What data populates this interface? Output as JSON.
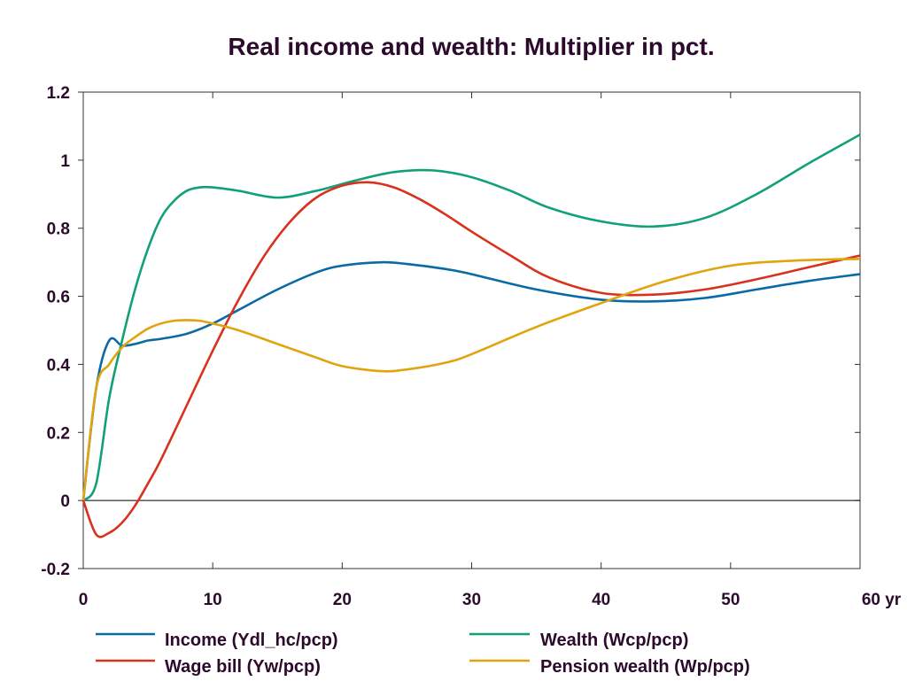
{
  "chart_data": {
    "type": "line",
    "title": "Real income and wealth: Multiplier in pct.",
    "xlim": [
      0,
      60
    ],
    "ylim": [
      -0.2,
      1.2
    ],
    "x_ticks": [
      0,
      10,
      20,
      30,
      40,
      50,
      60
    ],
    "x_tick_labels": [
      "0",
      "10",
      "20",
      "30",
      "40",
      "50",
      "60 yr"
    ],
    "y_ticks": [
      -0.2,
      0,
      0.2,
      0.4,
      0.6,
      0.8,
      1,
      1.2
    ],
    "y_tick_labels": [
      "-0.2",
      "0",
      "0.2",
      "0.4",
      "0.6",
      "0.8",
      "1",
      "1.2"
    ],
    "zero_line": true,
    "grid": false,
    "legend_position": "bottom",
    "series": [
      {
        "name": "Income (Ydl_hc/pcp)",
        "color": "#0a6aa6",
        "x": [
          0,
          1,
          2,
          3,
          4,
          5,
          6,
          8,
          10,
          12,
          15,
          18,
          20,
          23,
          25,
          28,
          30,
          35,
          40,
          44,
          48,
          52,
          56,
          60
        ],
        "y": [
          0,
          0.33,
          0.47,
          0.455,
          0.46,
          0.47,
          0.475,
          0.49,
          0.52,
          0.56,
          0.62,
          0.67,
          0.69,
          0.7,
          0.695,
          0.68,
          0.665,
          0.62,
          0.59,
          0.585,
          0.595,
          0.62,
          0.645,
          0.665
        ]
      },
      {
        "name": "Wealth (Wcp/pcp)",
        "color": "#12a07a",
        "x": [
          0,
          1,
          2,
          3,
          4,
          5,
          6,
          7,
          8,
          9,
          10,
          12,
          15,
          18,
          21,
          24,
          27,
          30,
          33,
          36,
          40,
          44,
          48,
          52,
          56,
          60
        ],
        "y": [
          0,
          0.05,
          0.3,
          0.47,
          0.62,
          0.74,
          0.83,
          0.88,
          0.91,
          0.92,
          0.92,
          0.91,
          0.89,
          0.91,
          0.94,
          0.965,
          0.97,
          0.95,
          0.91,
          0.86,
          0.82,
          0.805,
          0.83,
          0.9,
          0.99,
          1.075
        ]
      },
      {
        "name": "Wage bill (Yw/pcp)",
        "color": "#d8321e",
        "x": [
          0,
          1,
          2,
          3,
          4,
          5,
          6,
          8,
          10,
          12,
          14,
          16,
          18,
          20,
          22,
          24,
          26,
          28,
          30,
          33,
          36,
          40,
          44,
          48,
          52,
          56,
          60
        ],
        "y": [
          0,
          -0.1,
          -0.095,
          -0.065,
          -0.015,
          0.05,
          0.12,
          0.28,
          0.44,
          0.59,
          0.72,
          0.82,
          0.89,
          0.925,
          0.935,
          0.92,
          0.885,
          0.84,
          0.79,
          0.72,
          0.655,
          0.61,
          0.605,
          0.62,
          0.65,
          0.685,
          0.72
        ]
      },
      {
        "name": "Pension wealth (Wp/pcp)",
        "color": "#e0a40c",
        "x": [
          0,
          1,
          2,
          3,
          4,
          5,
          6,
          7,
          8,
          9,
          10,
          12,
          15,
          18,
          20,
          23,
          25,
          28,
          30,
          35,
          40,
          45,
          50,
          55,
          60
        ],
        "y": [
          0,
          0.33,
          0.4,
          0.45,
          0.48,
          0.505,
          0.52,
          0.528,
          0.53,
          0.528,
          0.52,
          0.5,
          0.46,
          0.42,
          0.395,
          0.38,
          0.385,
          0.405,
          0.43,
          0.51,
          0.58,
          0.645,
          0.69,
          0.705,
          0.71
        ]
      }
    ]
  }
}
